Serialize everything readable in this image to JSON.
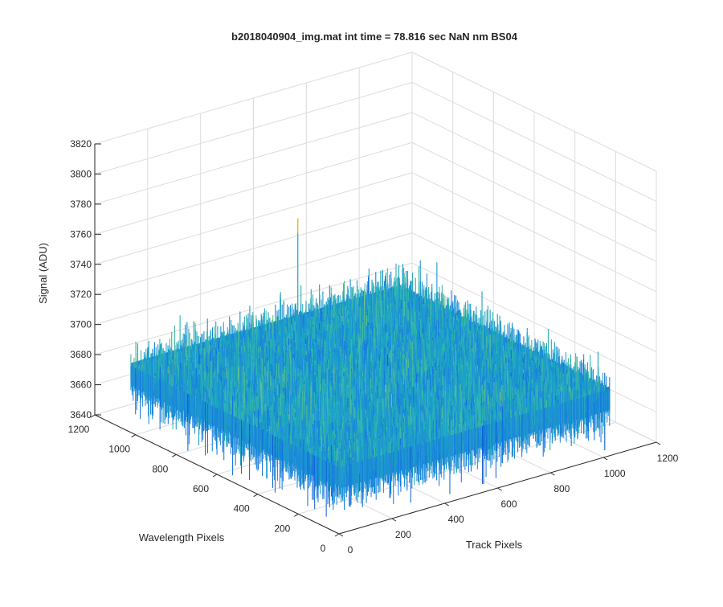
{
  "chart_data": {
    "type": "surface",
    "title": "b2018040904_img.mat int time = 78.816 sec  NaN nm BS04",
    "xlabel": "Track Pixels",
    "ylabel": "Wavelength Pixels",
    "zlabel": "Signal (ADU)",
    "xlim": [
      0,
      1200
    ],
    "ylim": [
      0,
      1200
    ],
    "zlim": [
      3640,
      3820
    ],
    "x_ticks": [
      "0",
      "200",
      "400",
      "600",
      "800",
      "1000",
      "1200"
    ],
    "y_ticks": [
      "0",
      "200",
      "400",
      "600",
      "800",
      "1000",
      "1200"
    ],
    "z_ticks": [
      "3640",
      "3660",
      "3680",
      "3700",
      "3720",
      "3740",
      "3760",
      "3780",
      "3800",
      "3820"
    ],
    "surface": {
      "x_range": [
        1,
        1024
      ],
      "y_range": [
        1,
        1024
      ],
      "mean_signal": 3678,
      "noise_amplitude": 12,
      "peak_value": 3760,
      "colormap": "parula"
    },
    "grid": true,
    "view": "3d-isometric"
  }
}
